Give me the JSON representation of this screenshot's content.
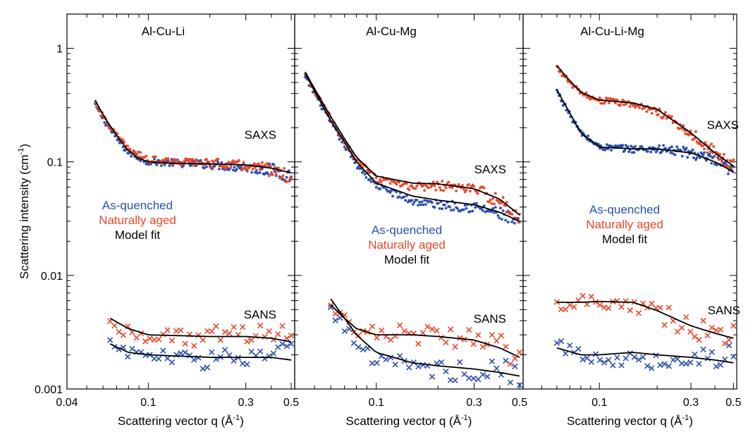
{
  "figure": {
    "ylabel": "Scattering intensity (cm",
    "ylabel_sup": "-1",
    "ylabel_close": ")",
    "xlabel": "Scattering vector q (Å",
    "xlabel_sup": "-1",
    "xlabel_close": ")",
    "y_ticks": [
      {
        "v": 1,
        "label": "1"
      },
      {
        "v": 0.1,
        "label": "0.1"
      },
      {
        "v": 0.01,
        "label": "0.01"
      },
      {
        "v": 0.001,
        "label": "0.001"
      }
    ],
    "colors": {
      "as_quenched": "#2a4fae",
      "naturally_aged": "#e8472a",
      "model_fit": "#000000"
    }
  },
  "chart_data": [
    {
      "type": "scatter",
      "title": "Al-Cu-Li",
      "x_scale": "log",
      "y_scale": "log",
      "xlim": [
        0.04,
        0.52
      ],
      "ylim": [
        0.001,
        2.0
      ],
      "x_ticks": [
        {
          "v": 0.04,
          "label": "0.04"
        },
        {
          "v": 0.1,
          "label": "0.1"
        },
        {
          "v": 0.3,
          "label": "0.3"
        },
        {
          "v": 0.5,
          "label": "0.5"
        }
      ],
      "legend": [
        "As-quenched",
        "Naturally aged",
        "Model fit"
      ],
      "annotations": [
        "SAXS",
        "SANS"
      ],
      "series": [
        {
          "name": "As-quenched",
          "technique": "SAXS",
          "marker": "dot",
          "x": [
            0.055,
            0.06,
            0.07,
            0.08,
            0.1,
            0.15,
            0.2,
            0.3,
            0.4,
            0.5
          ],
          "y": [
            0.32,
            0.24,
            0.16,
            0.12,
            0.1,
            0.097,
            0.095,
            0.09,
            0.085,
            0.075
          ]
        },
        {
          "name": "Naturally aged",
          "technique": "SAXS",
          "marker": "dot",
          "x": [
            0.055,
            0.06,
            0.07,
            0.08,
            0.1,
            0.15,
            0.2,
            0.3,
            0.4,
            0.5
          ],
          "y": [
            0.33,
            0.25,
            0.17,
            0.13,
            0.105,
            0.1,
            0.098,
            0.092,
            0.085,
            0.072
          ]
        },
        {
          "name": "As-quenched",
          "technique": "SANS",
          "marker": "cross",
          "x": [
            0.065,
            0.07,
            0.08,
            0.1,
            0.15,
            0.2,
            0.3,
            0.4,
            0.5
          ],
          "y": [
            0.0026,
            0.0024,
            0.0021,
            0.002,
            0.0018,
            0.00185,
            0.0019,
            0.002,
            0.0021
          ]
        },
        {
          "name": "Naturally aged",
          "technique": "SANS",
          "marker": "cross",
          "x": [
            0.065,
            0.07,
            0.08,
            0.1,
            0.15,
            0.2,
            0.3,
            0.4,
            0.5
          ],
          "y": [
            0.0038,
            0.0035,
            0.0032,
            0.003,
            0.0029,
            0.0029,
            0.003,
            0.0031,
            0.0031
          ]
        }
      ],
      "fits": [
        {
          "name": "Model fit",
          "technique": "SAXS",
          "x": [
            0.055,
            0.06,
            0.07,
            0.08,
            0.09,
            0.1,
            0.13,
            0.2,
            0.3,
            0.4,
            0.5
          ],
          "y": [
            0.35,
            0.26,
            0.17,
            0.125,
            0.107,
            0.1,
            0.097,
            0.096,
            0.094,
            0.088,
            0.08
          ]
        },
        {
          "name": "Model fit",
          "technique": "SANS",
          "x": [
            0.065,
            0.08,
            0.1,
            0.2,
            0.3,
            0.4,
            0.5
          ],
          "y": [
            0.0042,
            0.0034,
            0.003,
            0.0029,
            0.0029,
            0.0028,
            0.0026
          ]
        },
        {
          "name": "Model fit",
          "technique": "SANS",
          "x": [
            0.065,
            0.08,
            0.1,
            0.2,
            0.3,
            0.4,
            0.5
          ],
          "y": [
            0.0025,
            0.0021,
            0.002,
            0.0019,
            0.0019,
            0.0019,
            0.0018
          ]
        }
      ]
    },
    {
      "type": "scatter",
      "title": "Al-Cu-Mg",
      "x_scale": "log",
      "y_scale": "log",
      "xlim": [
        0.04,
        0.52
      ],
      "ylim": [
        0.001,
        2.0
      ],
      "x_ticks": [
        {
          "v": 0.1,
          "label": "0.1"
        },
        {
          "v": 0.3,
          "label": "0.3"
        },
        {
          "v": 0.5,
          "label": "0.5"
        }
      ],
      "legend": [
        "As-quenched",
        "Naturally aged",
        "Model fit"
      ],
      "annotations": [
        "SAXS",
        "SANS"
      ],
      "series": [
        {
          "name": "As-quenched",
          "technique": "SAXS",
          "marker": "dot",
          "x": [
            0.045,
            0.05,
            0.06,
            0.07,
            0.08,
            0.1,
            0.15,
            0.2,
            0.3,
            0.4,
            0.5
          ],
          "y": [
            0.55,
            0.4,
            0.22,
            0.14,
            0.095,
            0.062,
            0.045,
            0.042,
            0.04,
            0.035,
            0.028
          ]
        },
        {
          "name": "Naturally aged",
          "technique": "SAXS",
          "marker": "dot",
          "x": [
            0.045,
            0.05,
            0.06,
            0.07,
            0.08,
            0.1,
            0.15,
            0.2,
            0.3,
            0.4,
            0.5
          ],
          "y": [
            0.58,
            0.42,
            0.24,
            0.15,
            0.105,
            0.07,
            0.06,
            0.062,
            0.058,
            0.045,
            0.032
          ]
        },
        {
          "name": "As-quenched",
          "technique": "SANS",
          "marker": "cross",
          "x": [
            0.06,
            0.07,
            0.08,
            0.1,
            0.15,
            0.2,
            0.3,
            0.4,
            0.5
          ],
          "y": [
            0.005,
            0.0035,
            0.0025,
            0.0018,
            0.0016,
            0.0015,
            0.0014,
            0.0015,
            0.0013
          ]
        },
        {
          "name": "Naturally aged",
          "technique": "SANS",
          "marker": "cross",
          "x": [
            0.06,
            0.07,
            0.08,
            0.1,
            0.15,
            0.2,
            0.3,
            0.4,
            0.5
          ],
          "y": [
            0.0052,
            0.0042,
            0.0035,
            0.0031,
            0.003,
            0.003,
            0.0028,
            0.0024,
            0.0019
          ]
        }
      ],
      "fits": [
        {
          "name": "Model fit",
          "technique": "SAXS",
          "x": [
            0.045,
            0.05,
            0.06,
            0.07,
            0.08,
            0.1,
            0.15,
            0.2,
            0.3,
            0.4,
            0.5
          ],
          "y": [
            0.6,
            0.42,
            0.23,
            0.15,
            0.1,
            0.065,
            0.05,
            0.046,
            0.042,
            0.036,
            0.03
          ]
        },
        {
          "name": "Model fit",
          "technique": "SAXS",
          "x": [
            0.045,
            0.05,
            0.06,
            0.07,
            0.08,
            0.1,
            0.15,
            0.2,
            0.3,
            0.4,
            0.5
          ],
          "y": [
            0.62,
            0.44,
            0.25,
            0.16,
            0.11,
            0.075,
            0.065,
            0.064,
            0.058,
            0.047,
            0.034
          ]
        },
        {
          "name": "Model fit",
          "technique": "SANS",
          "x": [
            0.06,
            0.07,
            0.08,
            0.1,
            0.15,
            0.2,
            0.3,
            0.4,
            0.5
          ],
          "y": [
            0.0062,
            0.0042,
            0.003,
            0.0021,
            0.0017,
            0.0016,
            0.0015,
            0.0014,
            0.0013
          ]
        },
        {
          "name": "Model fit",
          "technique": "SANS",
          "x": [
            0.06,
            0.07,
            0.08,
            0.1,
            0.15,
            0.2,
            0.3,
            0.4,
            0.5
          ],
          "y": [
            0.0055,
            0.0042,
            0.0034,
            0.003,
            0.003,
            0.0029,
            0.0027,
            0.0023,
            0.0019
          ]
        }
      ]
    },
    {
      "type": "scatter",
      "title": "Al-Cu-Li-Mg",
      "x_scale": "log",
      "y_scale": "log",
      "xlim": [
        0.04,
        0.52
      ],
      "ylim": [
        0.001,
        2.0
      ],
      "x_ticks": [
        {
          "v": 0.1,
          "label": "0.1"
        },
        {
          "v": 0.3,
          "label": "0.3"
        },
        {
          "v": 0.5,
          "label": "0.5"
        }
      ],
      "legend": [
        "As-quenched",
        "Naturally aged",
        "Model fit"
      ],
      "annotations": [
        "SAXS",
        "SANS"
      ],
      "series": [
        {
          "name": "As-quenched",
          "technique": "SAXS",
          "marker": "dot",
          "x": [
            0.06,
            0.07,
            0.08,
            0.1,
            0.15,
            0.2,
            0.3,
            0.4,
            0.5
          ],
          "y": [
            0.42,
            0.26,
            0.18,
            0.135,
            0.13,
            0.13,
            0.12,
            0.1,
            0.08
          ]
        },
        {
          "name": "Naturally aged",
          "technique": "SAXS",
          "marker": "dot",
          "x": [
            0.06,
            0.07,
            0.08,
            0.1,
            0.15,
            0.2,
            0.3,
            0.4,
            0.5
          ],
          "y": [
            0.68,
            0.5,
            0.4,
            0.35,
            0.32,
            0.28,
            0.18,
            0.12,
            0.09
          ]
        },
        {
          "name": "As-quenched",
          "technique": "SANS",
          "marker": "cross",
          "x": [
            0.06,
            0.07,
            0.08,
            0.1,
            0.15,
            0.2,
            0.3,
            0.4,
            0.5
          ],
          "y": [
            0.0024,
            0.0022,
            0.002,
            0.0019,
            0.0018,
            0.0018,
            0.0019,
            0.002,
            0.002
          ]
        },
        {
          "name": "Naturally aged",
          "technique": "SANS",
          "marker": "cross",
          "x": [
            0.06,
            0.07,
            0.08,
            0.1,
            0.15,
            0.2,
            0.3,
            0.4,
            0.5
          ],
          "y": [
            0.0055,
            0.0058,
            0.006,
            0.006,
            0.0058,
            0.0048,
            0.0035,
            0.003,
            0.0028
          ]
        }
      ],
      "fits": [
        {
          "name": "Model fit",
          "technique": "SAXS",
          "x": [
            0.06,
            0.07,
            0.08,
            0.1,
            0.15,
            0.2,
            0.3,
            0.4,
            0.5
          ],
          "y": [
            0.43,
            0.27,
            0.18,
            0.135,
            0.13,
            0.13,
            0.12,
            0.1,
            0.082
          ]
        },
        {
          "name": "Model fit",
          "technique": "SAXS",
          "x": [
            0.06,
            0.07,
            0.08,
            0.1,
            0.15,
            0.2,
            0.3,
            0.4,
            0.5
          ],
          "y": [
            0.7,
            0.52,
            0.41,
            0.35,
            0.33,
            0.29,
            0.18,
            0.12,
            0.092
          ]
        },
        {
          "name": "Model fit",
          "technique": "SANS",
          "x": [
            0.06,
            0.08,
            0.1,
            0.15,
            0.2,
            0.3,
            0.4,
            0.5
          ],
          "y": [
            0.0058,
            0.0058,
            0.0059,
            0.0058,
            0.0049,
            0.0036,
            0.0031,
            0.0028
          ]
        },
        {
          "name": "Model fit",
          "technique": "SANS",
          "x": [
            0.06,
            0.08,
            0.1,
            0.15,
            0.2,
            0.3,
            0.4,
            0.5
          ],
          "y": [
            0.0023,
            0.002,
            0.002,
            0.0021,
            0.002,
            0.0019,
            0.0018,
            0.0017
          ]
        }
      ]
    }
  ]
}
